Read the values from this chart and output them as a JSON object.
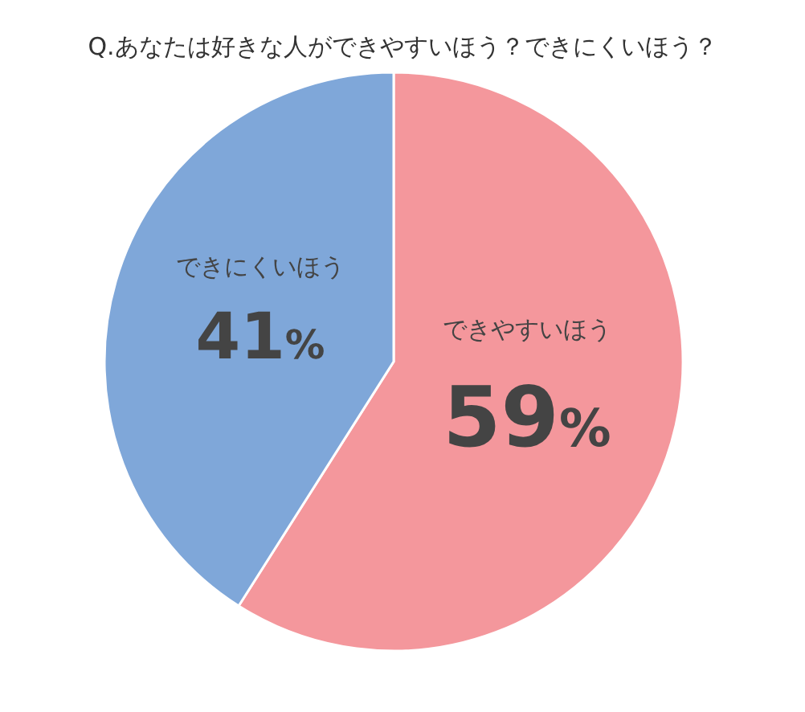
{
  "chart_data": {
    "type": "pie",
    "title": "Q.あなたは好きな人ができやすいほう？できにくいほう？",
    "categories": [
      "できやすいほう",
      "できにくいほう"
    ],
    "values": [
      59,
      41
    ],
    "colors": [
      "#f4979c",
      "#7fa7d9"
    ],
    "value_labels": [
      "59%",
      "41%"
    ]
  }
}
